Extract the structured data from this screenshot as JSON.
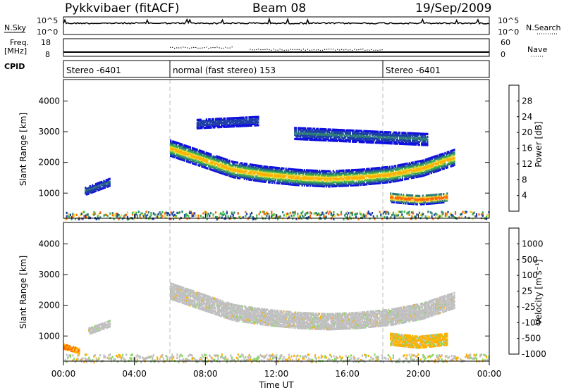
{
  "header": {
    "title": "Pykkvibaer (fitACF)",
    "beam": "Beam 08",
    "date": "19/Sep/2009"
  },
  "nsky_panel": {
    "left_label": "N.Sky",
    "left_ticks": [
      "10^5",
      "10^0"
    ],
    "right_label": "N.Search",
    "right_ticks": [
      "10^5",
      "10^0"
    ]
  },
  "freq_panel": {
    "left_label_line1": "Freq.",
    "left_label_line2": "[MHz]",
    "left_ticks": [
      "18",
      "8"
    ],
    "right_label": "Nave",
    "right_ticks": [
      "60",
      "0"
    ]
  },
  "cpid_panel": {
    "label": "CPID",
    "segments": [
      {
        "start_hour": 0,
        "end_hour": 6,
        "label": "Stereo -6401"
      },
      {
        "start_hour": 6,
        "end_hour": 18,
        "label": "normal (fast stereo) 153"
      },
      {
        "start_hour": 18,
        "end_hour": 24,
        "label": "Stereo -6401"
      }
    ]
  },
  "chart_data": [
    {
      "type": "heatmap",
      "panel": "power",
      "ylabel": "Slant Range [km]",
      "xlabel": "Time UT",
      "x_range_hours": [
        0,
        24
      ],
      "ylim": [
        180,
        4700
      ],
      "yticks": [
        1000,
        2000,
        3000,
        4000
      ],
      "xticks": [
        "00:00",
        "04:00",
        "08:00",
        "12:00",
        "16:00",
        "20:00",
        "00:00"
      ],
      "colorbar": {
        "label": "Power [dB]",
        "ticks": [
          "28",
          "24",
          "20",
          "16",
          "12",
          "8",
          "4"
        ],
        "colors": [
          "#ff0000",
          "#ff6a00",
          "#ffb000",
          "#e8d840",
          "#3cb34a",
          "#2e7d78",
          "#1f3fa8",
          "#1010e0"
        ]
      },
      "regions": [
        {
          "t0": 6.0,
          "t1": 22.0,
          "center_km": [
            2500,
            2150,
            1800,
            1650,
            1550,
            1500,
            1550,
            1650,
            1850,
            2200
          ],
          "half_width_km": 250,
          "max_db": 22
        },
        {
          "t0": 18.4,
          "t1": 21.6,
          "center_km": [
            900,
            850,
            820,
            850,
            900
          ],
          "half_width_km": 150,
          "max_db": 30
        },
        {
          "t0": 1.2,
          "t1": 2.6,
          "center_km": [
            1100,
            1400
          ],
          "half_width_km": 120,
          "max_db": 10
        },
        {
          "t0": 7.5,
          "t1": 11.0,
          "center_km": [
            3300,
            3400
          ],
          "half_width_km": 150,
          "max_db": 8
        },
        {
          "t0": 13.0,
          "t1": 20.5,
          "center_km": [
            3000,
            2800
          ],
          "half_width_km": 200,
          "max_db": 10
        }
      ]
    },
    {
      "type": "heatmap",
      "panel": "velocity",
      "ylabel": "Slant Range [km]",
      "xlabel": "Time UT",
      "x_range_hours": [
        0,
        24
      ],
      "ylim": [
        180,
        4700
      ],
      "yticks": [
        1000,
        2000,
        3000,
        4000
      ],
      "xticks": [
        "00:00",
        "04:00",
        "08:00",
        "12:00",
        "16:00",
        "20:00",
        "00:00"
      ],
      "colorbar": {
        "label": "Velocity [m s⁻¹]",
        "ticks": [
          "1000",
          "500",
          "100",
          "25",
          "-25",
          "-100",
          "-500",
          "-1000"
        ],
        "colors": [
          "#1f3fa8",
          "#2e7d78",
          "#3cb34a",
          "#88d860",
          "#c0c0c0",
          "#ffb000",
          "#ff6a00",
          "#ff0000"
        ]
      },
      "regions": [
        {
          "t0": 6.0,
          "t1": 22.0,
          "center_km": [
            2500,
            2150,
            1800,
            1650,
            1550,
            1500,
            1550,
            1650,
            1850,
            2200
          ],
          "half_width_km": 250,
          "velocity": 0
        },
        {
          "t0": 18.4,
          "t1": 21.6,
          "center_km": [
            950,
            900,
            850,
            900,
            950
          ],
          "half_width_km": 200,
          "velocity": -150
        },
        {
          "t0": 0.0,
          "t1": 0.9,
          "center_km": [
            700,
            550
          ],
          "half_width_km": 80,
          "velocity": -400
        },
        {
          "t0": 1.4,
          "t1": 2.6,
          "center_km": [
            1200,
            1450
          ],
          "half_width_km": 100,
          "velocity": 0
        }
      ]
    }
  ]
}
